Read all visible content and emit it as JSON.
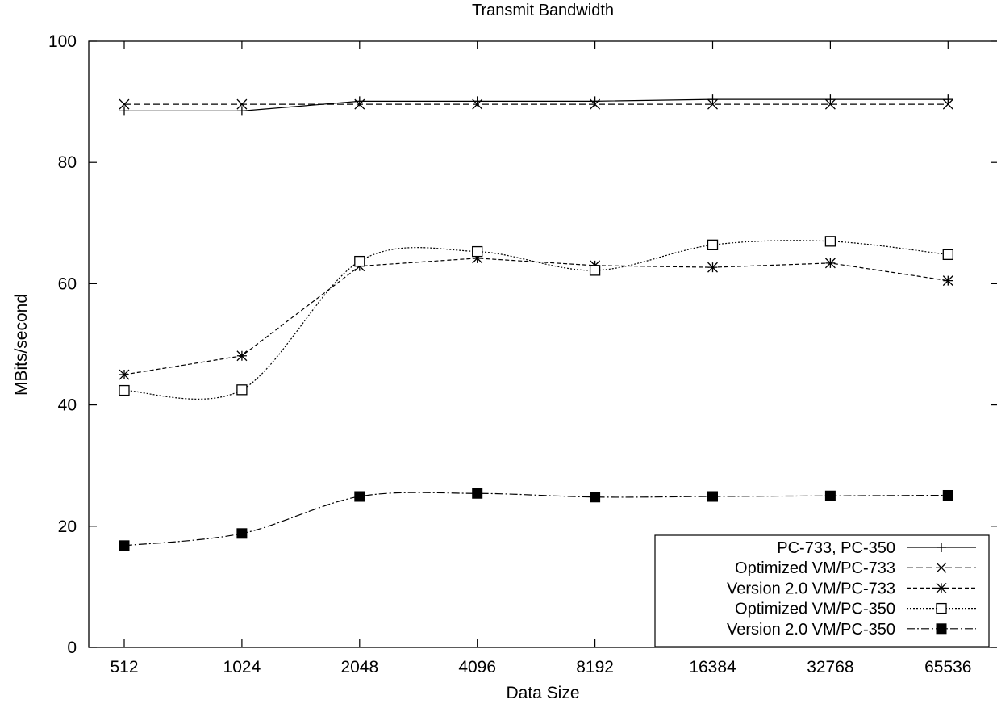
{
  "chart_data": {
    "type": "line",
    "title": "Transmit Bandwidth",
    "xlabel": "Data Size",
    "ylabel": "MBits/second",
    "categories": [
      "512",
      "1024",
      "2048",
      "4096",
      "8192",
      "16384",
      "32768",
      "65536"
    ],
    "ylim": [
      0,
      100
    ],
    "yticks": [
      0,
      20,
      40,
      60,
      80,
      100
    ],
    "grid": false,
    "legend_position": "bottom-right",
    "series": [
      {
        "name": "PC-733, PC-350",
        "values": [
          88.5,
          88.5,
          90.1,
          90.1,
          90.1,
          90.4,
          90.4,
          90.4
        ],
        "marker": "plus",
        "dash": "solid",
        "color": "#000000"
      },
      {
        "name": "Optimized VM/PC-733",
        "values": [
          89.6,
          89.6,
          89.6,
          89.6,
          89.6,
          89.6,
          89.6,
          89.6
        ],
        "marker": "cross",
        "dash": "dashed",
        "color": "#000000"
      },
      {
        "name": "Version 2.0 VM/PC-733",
        "values": [
          45.0,
          48.1,
          62.9,
          64.2,
          63.0,
          62.7,
          63.4,
          60.5
        ],
        "marker": "star",
        "dash": "short-dashed",
        "color": "#000000"
      },
      {
        "name": "Optimized VM/PC-350",
        "values": [
          42.4,
          42.5,
          63.7,
          65.3,
          62.2,
          66.4,
          67.0,
          64.8
        ],
        "marker": "open-square",
        "dash": "dotted",
        "color": "#000000"
      },
      {
        "name": "Version 2.0 VM/PC-350",
        "values": [
          16.8,
          18.8,
          24.9,
          25.4,
          24.8,
          24.9,
          25.0,
          25.1
        ],
        "marker": "filled-square",
        "dash": "dash-dot",
        "color": "#000000"
      }
    ]
  }
}
